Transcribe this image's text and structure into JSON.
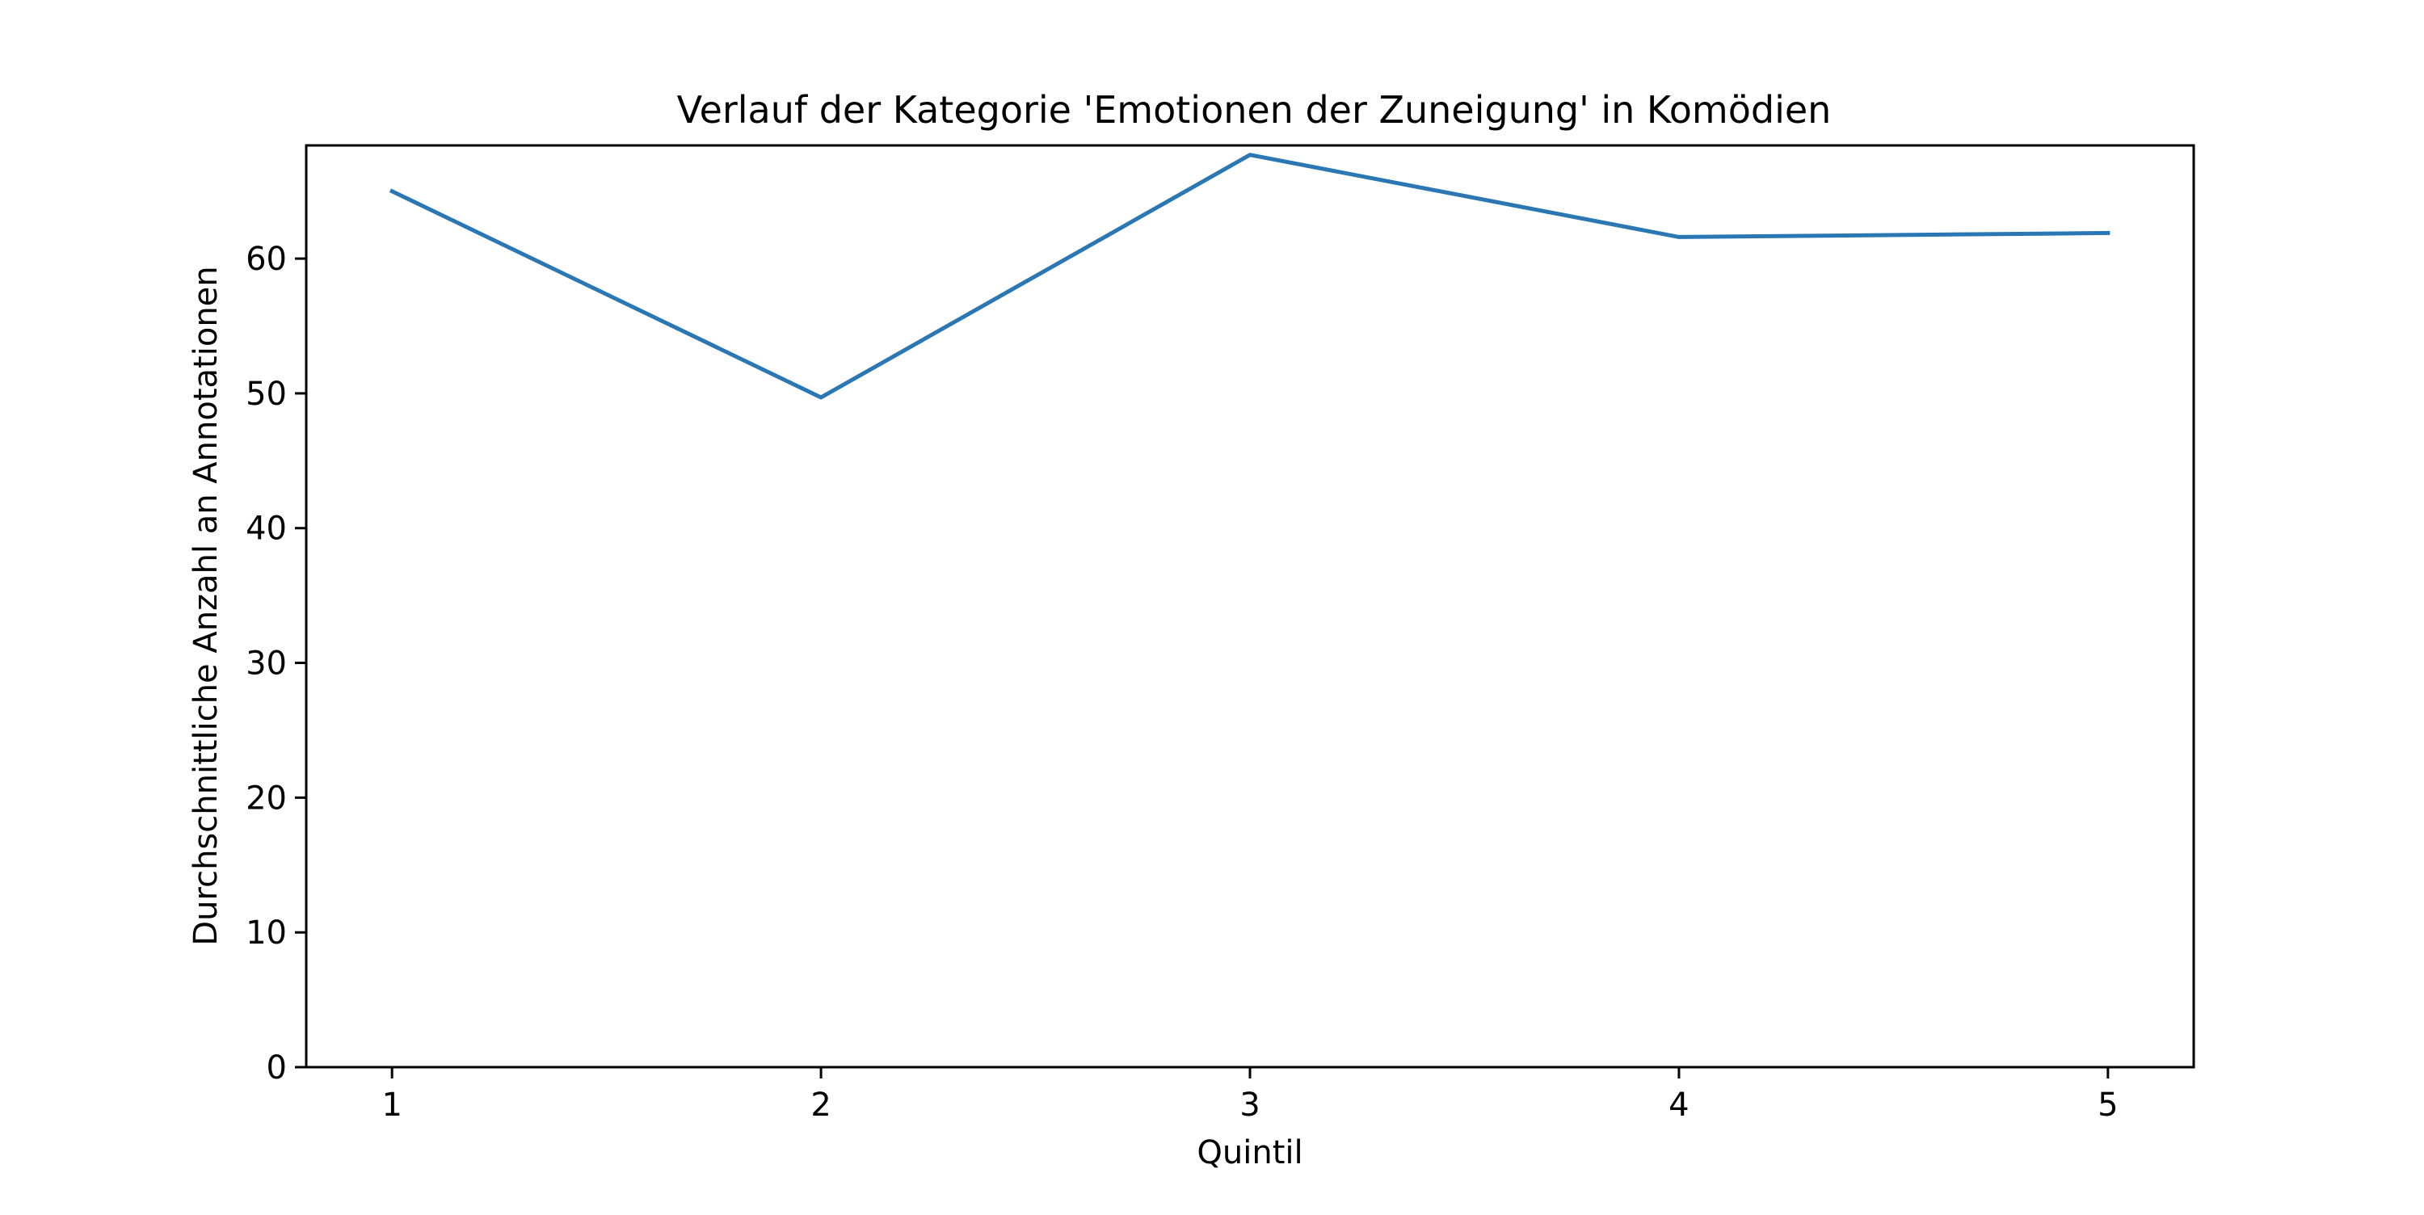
{
  "chart_data": {
    "type": "line",
    "title": "Verlauf der Kategorie 'Emotionen der Zuneigung' in Komödien",
    "xlabel": "Quintil",
    "ylabel": "Durchschnittliche Anzahl an Annotationen",
    "x": [
      1,
      2,
      3,
      4,
      5
    ],
    "x_tick_labels": [
      "1",
      "2",
      "3",
      "4",
      "5"
    ],
    "xlim": [
      0.8,
      5.2
    ],
    "y_ticks": [
      0,
      10,
      20,
      30,
      40,
      50,
      60
    ],
    "y_tick_labels": [
      "0",
      "10",
      "20",
      "30",
      "40",
      "50",
      "60"
    ],
    "ylim": [
      0,
      68.4
    ],
    "grid": false,
    "legend": "none",
    "series": [
      {
        "values": [
          65.0,
          49.7,
          67.7,
          61.6,
          61.9
        ],
        "color": "#2a77b4"
      }
    ]
  }
}
